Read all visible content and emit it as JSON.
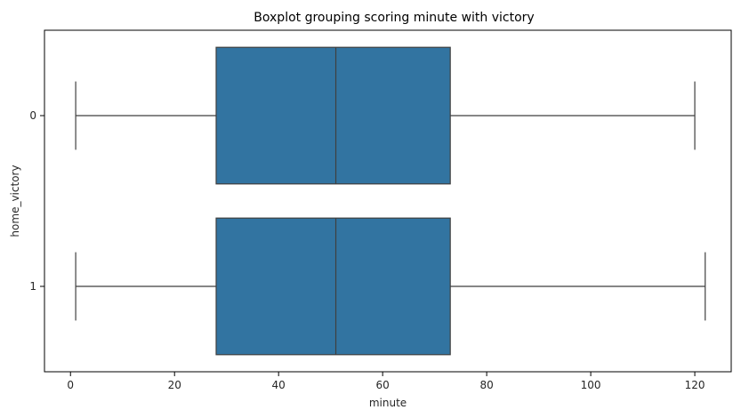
{
  "chart_data": {
    "type": "boxplot",
    "orientation": "horizontal",
    "title": "Boxplot grouping scoring minute with victory",
    "xlabel": "minute",
    "ylabel": "home_victory",
    "xlim": [
      -5,
      127
    ],
    "xticks": [
      0,
      20,
      40,
      60,
      80,
      100,
      120
    ],
    "xtick_labels": [
      "0",
      "20",
      "40",
      "60",
      "80",
      "100",
      "120"
    ],
    "categories": [
      "0",
      "1"
    ],
    "boxes": [
      {
        "category": "0",
        "whisker_low": 1,
        "q1": 28,
        "median": 51,
        "q3": 73,
        "whisker_high": 120
      },
      {
        "category": "1",
        "whisker_low": 1,
        "q1": 28,
        "median": 51,
        "q3": 73,
        "whisker_high": 122
      }
    ],
    "grid": false,
    "box_color": "#3274a1",
    "line_color": "#3f3f3f"
  }
}
